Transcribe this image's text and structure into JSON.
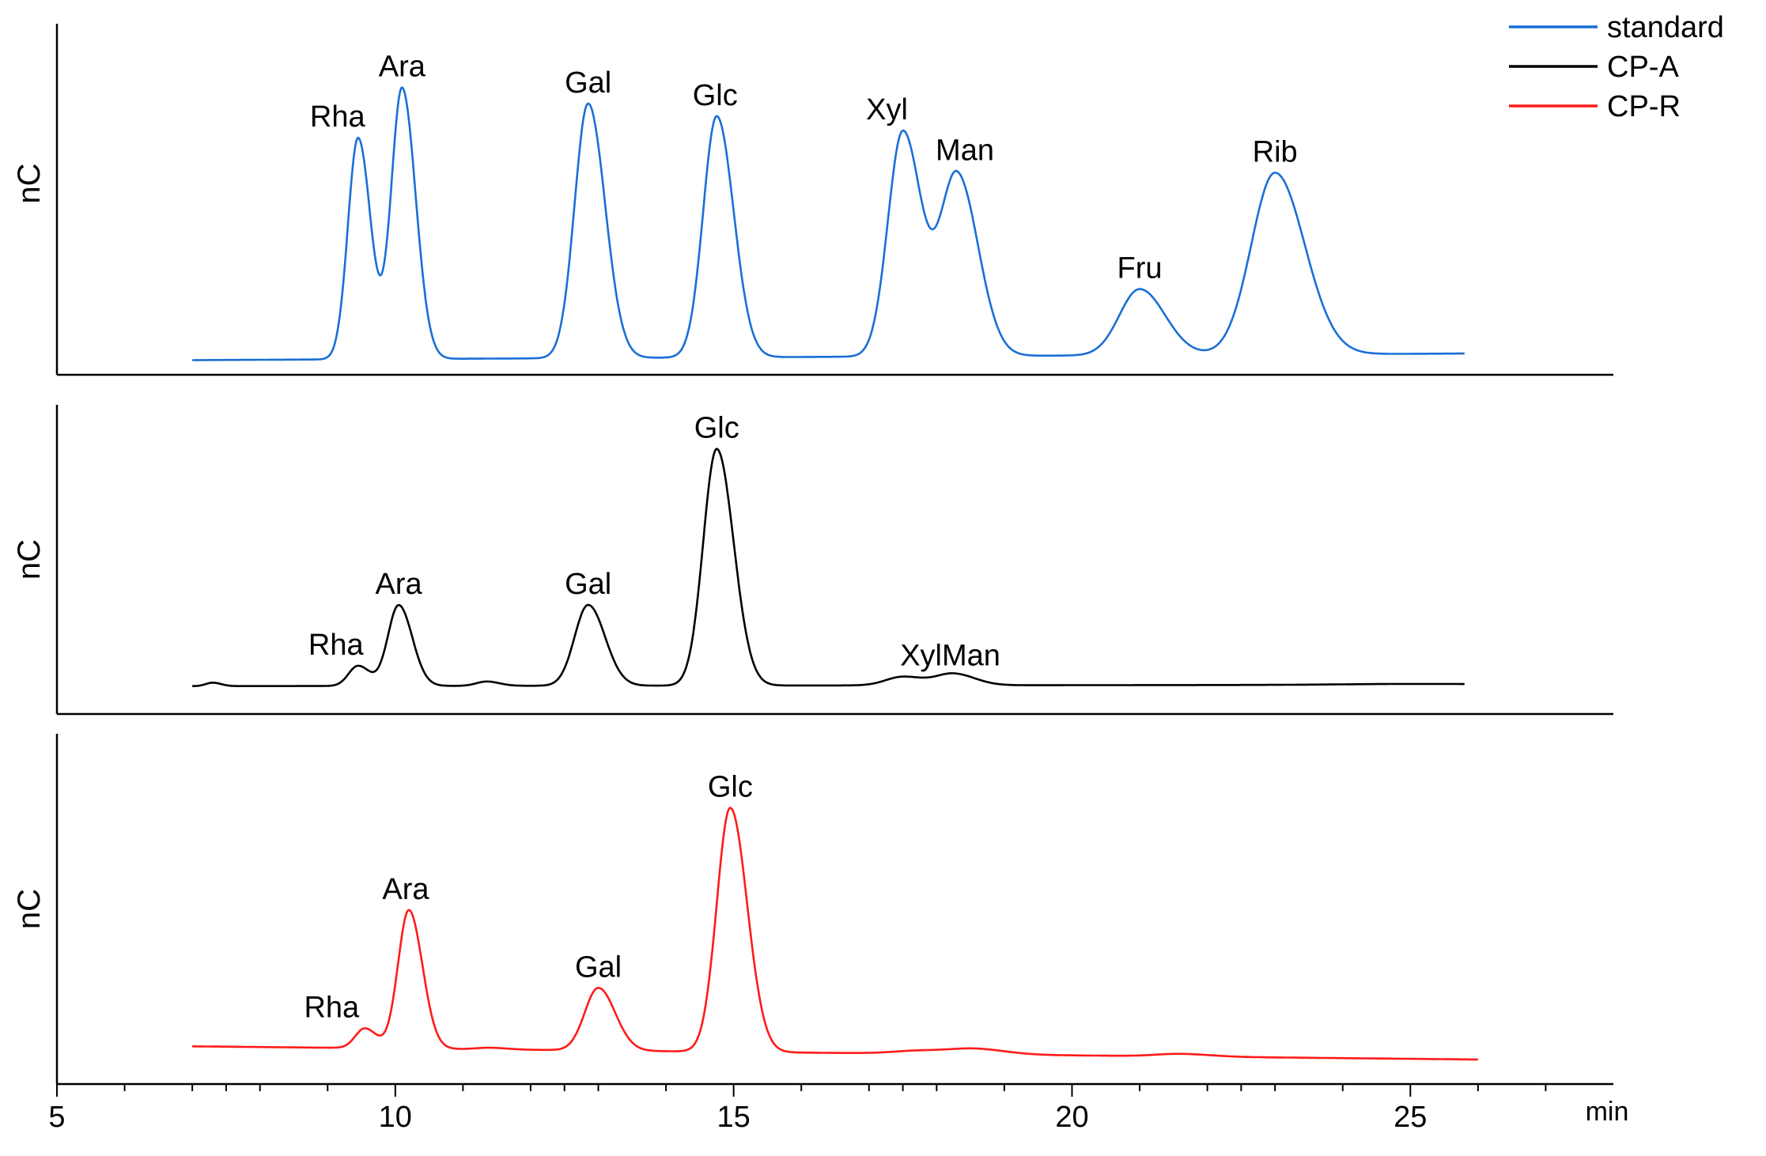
{
  "chart_data": {
    "type": "line",
    "x_unit_label": "min",
    "y_axis_label": "nC",
    "xlim": [
      5,
      28
    ],
    "x_ticks": [
      5,
      10,
      15,
      20,
      25
    ],
    "legend": {
      "placement": "top-right",
      "entries": [
        {
          "name": "standard",
          "color": "#1a6fd6"
        },
        {
          "name": "CP-A",
          "color": "#000000"
        },
        {
          "name": "CP-R",
          "color": "#ff1a1a"
        }
      ]
    },
    "panels": [
      {
        "series": "standard",
        "color": "#1a6fd6",
        "x_range": [
          7.0,
          25.8
        ],
        "ylim": [
          0,
          100
        ],
        "baseline": {
          "start": 3.0,
          "end": 5.0
        },
        "peaks": [
          {
            "label": "Rha",
            "x": 9.45,
            "height": 67,
            "width": 0.15
          },
          {
            "label": "Ara",
            "x": 10.1,
            "height": 82,
            "width": 0.16
          },
          {
            "label": "Gal",
            "x": 12.85,
            "height": 77,
            "width": 0.2
          },
          {
            "label": "Glc",
            "x": 14.75,
            "height": 73,
            "width": 0.2
          },
          {
            "label": "Xyl",
            "x": 17.5,
            "height": 68,
            "width": 0.22
          },
          {
            "label": "Man",
            "x": 18.3,
            "height": 55,
            "width": 0.25
          },
          {
            "label": "Fru",
            "x": 21.0,
            "height": 20,
            "width": 0.3
          },
          {
            "label": "Rib",
            "x": 23.0,
            "height": 55,
            "width": 0.35
          }
        ]
      },
      {
        "series": "CP-A",
        "color": "#000000",
        "x_range": [
          7.0,
          25.8
        ],
        "ylim": [
          0,
          100
        ],
        "baseline": {
          "start": 8.0,
          "end": 8.5
        },
        "peaks": [
          {
            "label": "",
            "x": 7.3,
            "height": 1.2,
            "width": 0.1
          },
          {
            "label": "Rha",
            "x": 9.45,
            "height": 7,
            "width": 0.14
          },
          {
            "label": "Ara",
            "x": 10.05,
            "height": 28,
            "width": 0.16
          },
          {
            "label": "",
            "x": 11.35,
            "height": 1.5,
            "width": 0.15
          },
          {
            "label": "Gal",
            "x": 12.85,
            "height": 28,
            "width": 0.2
          },
          {
            "label": "Glc",
            "x": 14.75,
            "height": 82,
            "width": 0.2
          },
          {
            "label": "XylMan",
            "x": 17.5,
            "height": 3,
            "width": 0.25
          },
          {
            "label": "",
            "x": 18.25,
            "height": 4,
            "width": 0.25
          },
          {
            "label": "",
            "x": 25.0,
            "height": 0.3,
            "width": 1.0
          }
        ]
      },
      {
        "series": "CP-R",
        "color": "#ff1a1a",
        "x_range": [
          7.0,
          26.0
        ],
        "ylim": [
          0,
          100
        ],
        "baseline": {
          "start": 10.0,
          "end": 6.0
        },
        "peaks": [
          {
            "label": "Rha",
            "x": 9.55,
            "height": 6,
            "width": 0.14
          },
          {
            "label": "Ara",
            "x": 10.2,
            "height": 42,
            "width": 0.16
          },
          {
            "label": "",
            "x": 11.4,
            "height": 0.5,
            "width": 0.2
          },
          {
            "label": "Gal",
            "x": 13.0,
            "height": 19,
            "width": 0.2
          },
          {
            "label": "Glc",
            "x": 14.95,
            "height": 74,
            "width": 0.2
          },
          {
            "label": "",
            "x": 17.8,
            "height": 1,
            "width": 0.4
          },
          {
            "label": "",
            "x": 18.6,
            "height": 1.5,
            "width": 0.35
          },
          {
            "label": "",
            "x": 21.6,
            "height": 0.8,
            "width": 0.35
          }
        ]
      }
    ]
  }
}
